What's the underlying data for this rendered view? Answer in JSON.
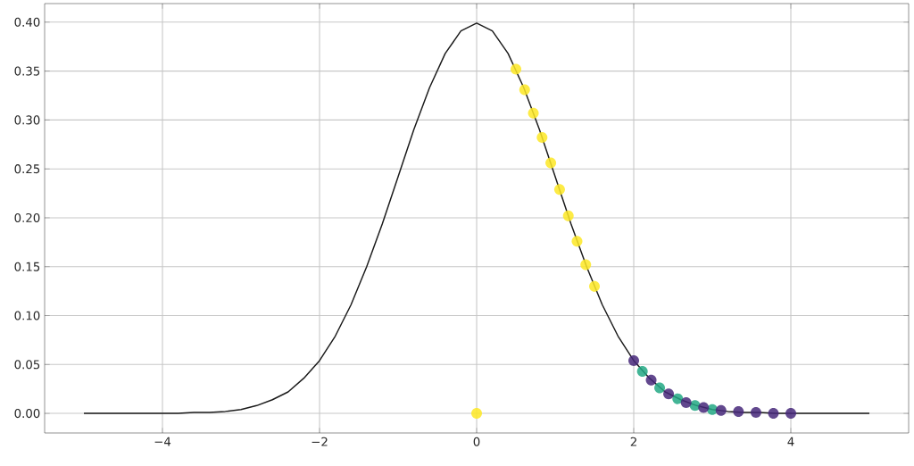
{
  "chart_data": {
    "type": "line",
    "xlim": [
      -5.5,
      5.5
    ],
    "ylim": [
      -0.02,
      0.419
    ],
    "xticks": [
      {
        "value": -4,
        "label": "−4"
      },
      {
        "value": -2,
        "label": "−2"
      },
      {
        "value": 0,
        "label": "0"
      },
      {
        "value": 2,
        "label": "2"
      },
      {
        "value": 4,
        "label": "4"
      }
    ],
    "yticks": [
      {
        "value": 0,
        "label": "0.00"
      },
      {
        "value": 0.05,
        "label": "0.05"
      },
      {
        "value": 0.1,
        "label": "0.10"
      },
      {
        "value": 0.15,
        "label": "0.15"
      },
      {
        "value": 0.2,
        "label": "0.20"
      },
      {
        "value": 0.25,
        "label": "0.25"
      },
      {
        "value": 0.3,
        "label": "0.30"
      },
      {
        "value": 0.35,
        "label": "0.35"
      },
      {
        "value": 0.4,
        "label": "0.40"
      }
    ],
    "grid": true,
    "marker": "circle",
    "series": [
      {
        "marker": "none",
        "color": "#1a1a1a",
        "x": [
          -5,
          -4.8,
          -4.6,
          -4.4,
          -4.2,
          -4,
          -3.8,
          -3.6,
          -3.4,
          -3.2,
          -3,
          -2.8,
          -2.6,
          -2.4,
          -2.2,
          -2,
          -1.8,
          -1.6,
          -1.4,
          -1.2,
          -1,
          -0.8,
          -0.6,
          -0.4,
          -0.2,
          0,
          0.2,
          0.4,
          0.6,
          0.8,
          1,
          1.2,
          1.4,
          1.6,
          1.8,
          2,
          2.2,
          2.4,
          2.6,
          2.8,
          3,
          3.2,
          3.4,
          3.6,
          3.8,
          4,
          4.2,
          4.4,
          4.6,
          4.8,
          5
        ],
        "values": [
          0,
          0,
          0,
          0,
          0,
          0,
          0,
          0.001,
          0.001,
          0.002,
          0.004,
          0.008,
          0.014,
          0.022,
          0.036,
          0.054,
          0.079,
          0.111,
          0.15,
          0.194,
          0.242,
          0.29,
          0.333,
          0.368,
          0.391,
          0.399,
          0.391,
          0.368,
          0.333,
          0.29,
          0.242,
          0.194,
          0.15,
          0.111,
          0.079,
          0.054,
          0.036,
          0.022,
          0.014,
          0.008,
          0.004,
          0.002,
          0.001,
          0.001,
          0,
          0,
          0,
          0,
          0,
          0,
          0
        ]
      },
      {
        "type": "scatter",
        "color": "#fde725",
        "x": [
          0.5,
          0.611,
          0.722,
          0.833,
          0.944,
          1.056,
          1.167,
          1.278,
          1.389,
          1.5,
          0
        ],
        "values": [
          0.352,
          0.331,
          0.307,
          0.282,
          0.256,
          0.229,
          0.202,
          0.176,
          0.152,
          0.13,
          0
        ]
      },
      {
        "type": "scatter",
        "color": "#22a884",
        "x": [
          2.11,
          2.33,
          2.56,
          2.78,
          3.0
        ],
        "values": [
          0.043,
          0.026,
          0.015,
          0.008,
          0.004
        ]
      },
      {
        "type": "scatter",
        "color": "#46287a",
        "x": [
          2,
          2.222,
          2.444,
          2.667,
          2.889,
          3.111,
          3.333,
          3.556,
          3.778,
          4
        ],
        "values": [
          0.054,
          0.034,
          0.02,
          0.011,
          0.006,
          0.003,
          0.002,
          0.001,
          0,
          0
        ]
      }
    ]
  }
}
